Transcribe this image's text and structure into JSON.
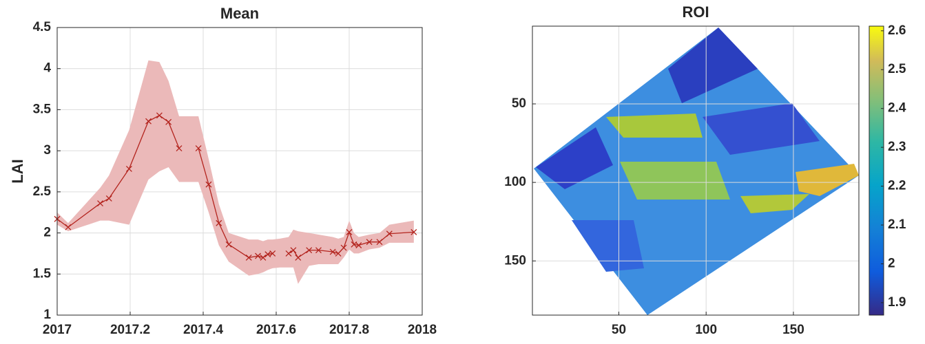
{
  "chart_data": [
    {
      "type": "line",
      "title": "Mean",
      "y_label": "LAI",
      "x": [
        2017.0,
        2017.03,
        2017.118,
        2017.142,
        2017.197,
        2017.25,
        2017.28,
        2017.305,
        2017.334,
        2017.36,
        2017.387,
        2017.415,
        2017.443,
        2017.47,
        2017.525,
        2017.55,
        2017.564,
        2017.577,
        2017.59,
        2017.61,
        2017.634,
        2017.647,
        2017.66,
        2017.69,
        2017.716,
        2017.755,
        2017.77,
        2017.785,
        2017.8,
        2017.813,
        2017.826,
        2017.855,
        2017.883,
        2017.91,
        2017.977
      ],
      "values": [
        2.17,
        2.07,
        2.36,
        2.42,
        2.78,
        3.36,
        3.43,
        3.35,
        3.03,
        null,
        3.03,
        2.59,
        2.12,
        1.86,
        1.7,
        1.72,
        1.7,
        1.74,
        1.75,
        null,
        1.75,
        1.79,
        1.7,
        1.79,
        1.79,
        1.77,
        1.75,
        1.82,
        2.01,
        1.86,
        1.85,
        1.89,
        1.89,
        1.99,
        2.01
      ],
      "upper": [
        2.25,
        2.12,
        2.55,
        2.7,
        3.25,
        4.1,
        4.08,
        3.85,
        3.42,
        3.42,
        3.42,
        2.9,
        2.35,
        2.0,
        1.92,
        1.92,
        1.9,
        1.92,
        1.92,
        1.93,
        1.95,
        2.04,
        2.02,
        2.0,
        1.98,
        1.95,
        1.93,
        1.95,
        2.15,
        2.0,
        1.95,
        1.98,
        2.0,
        2.1,
        2.15
      ],
      "lower": [
        2.1,
        2.02,
        2.15,
        2.15,
        2.1,
        2.65,
        2.75,
        2.8,
        2.62,
        2.62,
        2.62,
        2.25,
        1.85,
        1.65,
        1.48,
        1.5,
        1.52,
        1.55,
        1.57,
        1.58,
        1.58,
        1.58,
        1.38,
        1.6,
        1.62,
        1.62,
        1.62,
        1.7,
        1.8,
        1.75,
        1.75,
        1.8,
        1.82,
        1.88,
        1.88
      ],
      "color": "#b3241e",
      "band_color": "#ebb9b9",
      "xlim": [
        2017,
        2018
      ],
      "xticks": [
        2017,
        2017.2,
        2017.4,
        2017.6,
        2017.8,
        2018
      ],
      "ylim": [
        1,
        4.5
      ],
      "yticks": [
        1,
        1.5,
        2,
        2.5,
        3,
        3.5,
        4,
        4.5
      ],
      "grid": true
    },
    {
      "type": "image",
      "title": "ROI",
      "colormap": "parula",
      "xlim": [
        0.5,
        187.5
      ],
      "xticks": [
        50,
        100,
        150
      ],
      "ylim": [
        0.5,
        184.5
      ],
      "yticks": [
        50,
        100,
        150
      ],
      "y_reversed": true,
      "grid": true,
      "clim": [
        1.868,
        2.612
      ],
      "cticks": [
        1.9,
        2,
        2.1,
        2.2,
        2.3,
        2.4,
        2.5,
        2.6
      ]
    }
  ]
}
